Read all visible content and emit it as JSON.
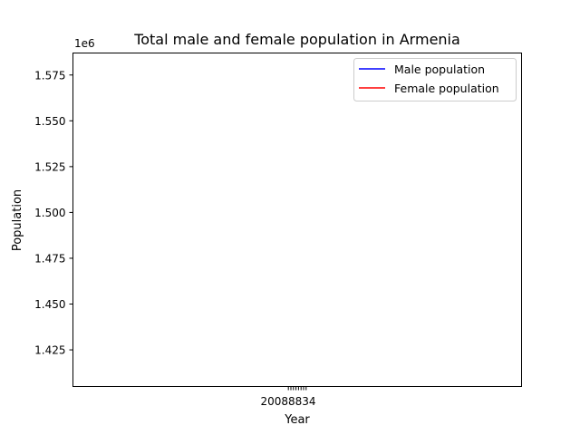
{
  "chart_data": {
    "type": "line",
    "title": "Total male and female population in Armenia",
    "xlabel": "Year",
    "ylabel": "Population",
    "y_offset_text": "1e6",
    "ylim": [
      1.405,
      1.587
    ],
    "y_ticks": [
      1.425,
      1.45,
      1.475,
      1.5,
      1.525,
      1.55,
      1.575
    ],
    "y_tick_labels": [
      "1.425",
      "1.450",
      "1.475",
      "1.500",
      "1.525",
      "1.550",
      "1.575"
    ],
    "x_tick_labels": [
      "2007",
      "2008",
      "2009",
      "2010",
      "2011",
      "2012",
      "2013",
      "2014"
    ],
    "x_tick_labels_overlapping": "20088834",
    "grid": false,
    "legend_position": "top-right",
    "series": [
      {
        "name": "Male population",
        "color": "#0000ff",
        "values": []
      },
      {
        "name": "Female population",
        "color": "#ff0000",
        "values": []
      }
    ]
  }
}
